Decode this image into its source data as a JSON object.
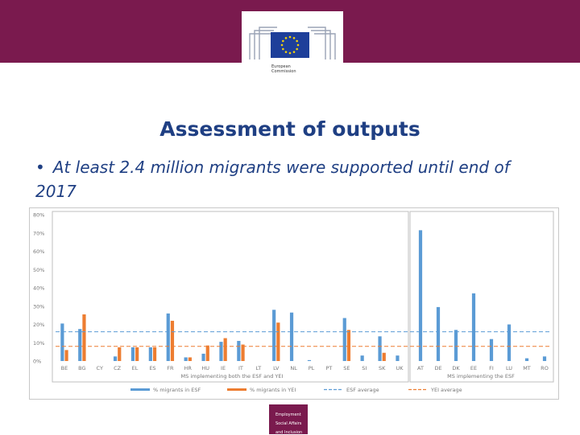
{
  "header": {
    "org_line1": "European",
    "org_line2": "Commission",
    "colors": {
      "band": "#7a1a4e",
      "flag": "#1e3f9a",
      "stars": "#f5d20c"
    }
  },
  "slide": {
    "title": "Assessment of outputs",
    "bullet": "At least 2.4 million migrants were supported until end of 2017"
  },
  "footer": {
    "line1": "Employment",
    "line2": "Social Affairs",
    "line3": "and Inclusion"
  },
  "chart_data": {
    "type": "bar",
    "ylabel": "",
    "xlabel": "",
    "ylim": [
      0,
      80
    ],
    "yticks": [
      "0%",
      "10%",
      "20%",
      "30%",
      "40%",
      "50%",
      "60%",
      "70%",
      "80%"
    ],
    "grid": false,
    "legend_position": "bottom",
    "groups": [
      {
        "label": "MS implementing both the ESF and YEI",
        "categories": [
          "BE",
          "BG",
          "CY",
          "CZ",
          "EL",
          "ES",
          "FR",
          "HR",
          "HU",
          "IE",
          "IT",
          "LT",
          "LV",
          "NL",
          "PL",
          "PT",
          "SE",
          "SI",
          "SK",
          "UK"
        ]
      },
      {
        "label": "MS implementing the ESF",
        "categories": [
          "AT",
          "DE",
          "DK",
          "EE",
          "FI",
          "LU",
          "MT",
          "RO"
        ]
      }
    ],
    "categories": [
      "BE",
      "BG",
      "CY",
      "CZ",
      "EL",
      "ES",
      "FR",
      "HR",
      "HU",
      "IE",
      "IT",
      "LT",
      "LV",
      "NL",
      "PL",
      "PT",
      "SE",
      "SI",
      "SK",
      "UK",
      "AT",
      "DE",
      "DK",
      "EE",
      "FI",
      "LU",
      "MT",
      "RO"
    ],
    "series": [
      {
        "name": "% migrants in ESF",
        "color": "#5b9bd5",
        "values": [
          20.5,
          17.5,
          0,
          2.5,
          7.5,
          7.5,
          26,
          2,
          4,
          10.5,
          11,
          0,
          28,
          26.5,
          0.5,
          0,
          23.5,
          3,
          13.5,
          3,
          71.5,
          29.5,
          17,
          37,
          12,
          20,
          1.5,
          2.5
        ]
      },
      {
        "name": "% migrants in YEI",
        "color": "#ed7d31",
        "values": [
          6,
          25.5,
          0,
          7.5,
          7.5,
          7.5,
          22,
          2,
          8.5,
          12.5,
          9,
          0,
          21,
          0,
          0,
          0,
          17,
          0,
          4.5,
          0,
          null,
          null,
          null,
          null,
          null,
          null,
          null,
          null
        ]
      }
    ],
    "reference_lines": [
      {
        "name": "ESF average",
        "value": 16,
        "color": "#5b9bd5"
      },
      {
        "name": "YEI average",
        "value": 8,
        "color": "#ed7d31"
      }
    ]
  }
}
